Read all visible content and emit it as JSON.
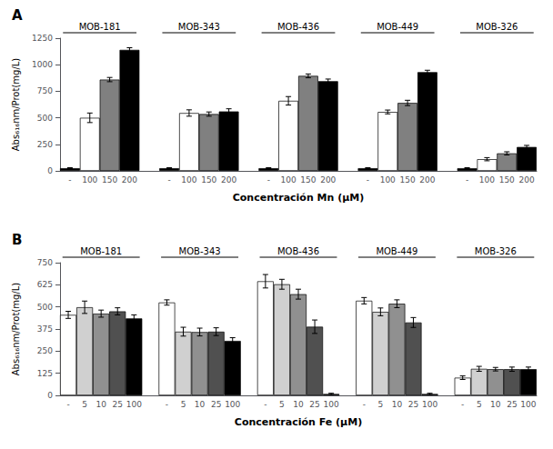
{
  "chart_data": [
    {
      "type": "bar",
      "title": "A",
      "xlabel": "Concentración Mn (μM)",
      "ylabel": "Abs₆₁₆nm/Prot(mg/L)",
      "categories": [
        "-",
        "100",
        "150",
        "200"
      ],
      "colors": [
        "black",
        "white",
        "#808080",
        "black"
      ],
      "series": [
        {
          "name": "MOB-181",
          "values": [
            25,
            500,
            860,
            1140
          ],
          "errors": [
            5,
            45,
            20,
            20
          ]
        },
        {
          "name": "MOB-343",
          "values": [
            25,
            545,
            535,
            560
          ],
          "errors": [
            5,
            30,
            20,
            25
          ]
        },
        {
          "name": "MOB-436",
          "values": [
            25,
            660,
            895,
            845
          ],
          "errors": [
            5,
            40,
            18,
            20
          ]
        },
        {
          "name": "MOB-449",
          "values": [
            25,
            555,
            640,
            930
          ],
          "errors": [
            5,
            18,
            25,
            18
          ]
        },
        {
          "name": "MOB-326",
          "values": [
            25,
            110,
            165,
            225
          ],
          "errors": [
            5,
            15,
            15,
            15
          ]
        }
      ],
      "ylim": [
        0,
        1250
      ],
      "yticks": [
        0,
        250,
        500,
        750,
        1000,
        1250
      ],
      "grid": false
    },
    {
      "type": "bar",
      "title": "B",
      "xlabel": "Concentración Fe (μM)",
      "ylabel": "Abs₆₁₆nm/Prot(mg/L)",
      "categories": [
        "-",
        "5",
        "10",
        "25",
        "100"
      ],
      "colors": [
        "white",
        "#d0d0d0",
        "#909090",
        "#505050",
        "black"
      ],
      "series": [
        {
          "name": "MOB-181",
          "values": [
            455,
            498,
            462,
            475,
            435
          ],
          "errors": [
            20,
            35,
            20,
            20,
            20
          ]
        },
        {
          "name": "MOB-343",
          "values": [
            525,
            360,
            358,
            360,
            308
          ],
          "errors": [
            15,
            25,
            22,
            22,
            18
          ]
        },
        {
          "name": "MOB-436",
          "values": [
            645,
            628,
            572,
            388,
            8
          ],
          "errors": [
            38,
            28,
            28,
            38,
            4
          ]
        },
        {
          "name": "MOB-449",
          "values": [
            535,
            472,
            518,
            412,
            8
          ],
          "errors": [
            18,
            22,
            22,
            28,
            4
          ]
        },
        {
          "name": "MOB-326",
          "values": [
            100,
            150,
            148,
            148,
            148
          ],
          "errors": [
            10,
            14,
            10,
            12,
            12
          ]
        }
      ],
      "ylim": [
        0,
        750
      ],
      "yticks": [
        0,
        125,
        250,
        375,
        500,
        625,
        750
      ],
      "grid": false
    }
  ]
}
